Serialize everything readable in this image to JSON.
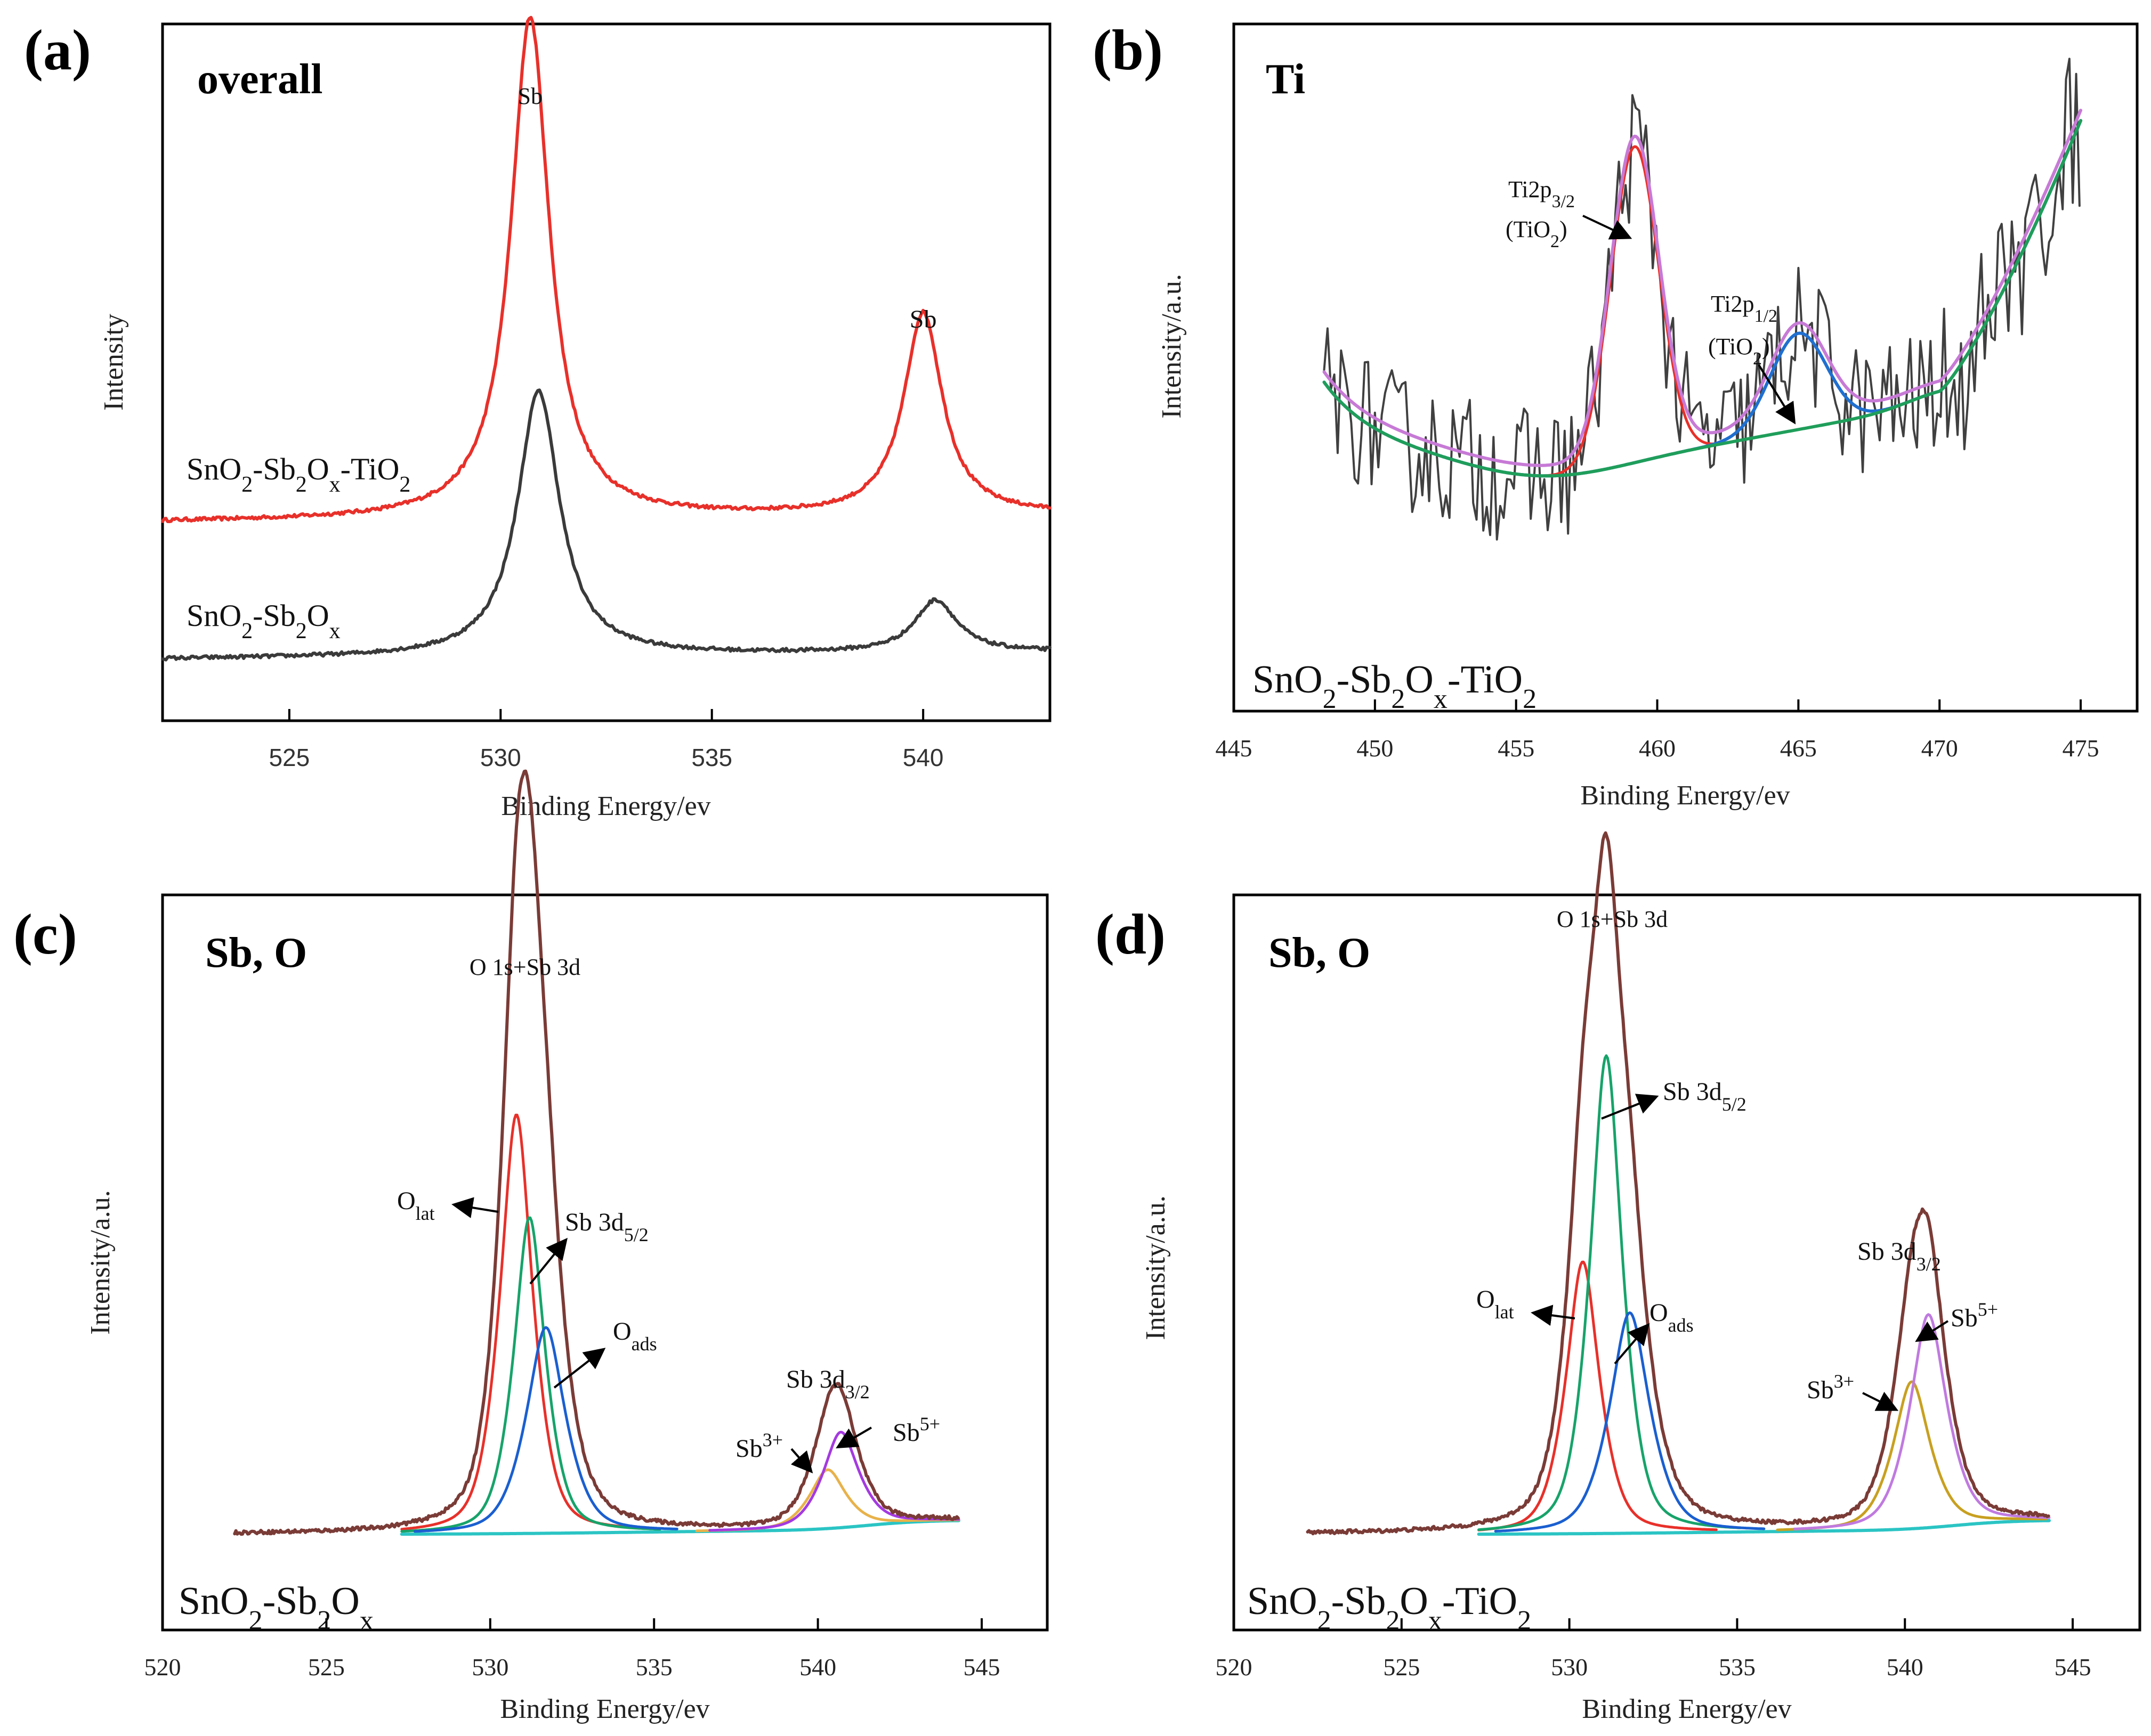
{
  "chart_data": [
    {
      "type": "line",
      "panel": "(a)",
      "title": "overall",
      "xlabel": "Binding Energy/ev",
      "ylabel": "Intensity",
      "xlim": [
        522,
        543
      ],
      "ylim": [
        0,
        100
      ],
      "xticks": [
        525,
        530,
        535,
        540
      ],
      "series": [
        {
          "name": "SnO2-Sb2Ox-TiO2",
          "label_html": "SnO<sub>2</sub>-Sb<sub>2</sub>O<sub>x</sub>-TiO<sub>2</sub>",
          "color": "#e8302a",
          "baseline": 28.5,
          "peaks": [
            {
              "center": 530.7,
              "height": 72,
              "width": 0.55
            },
            {
              "center": 540.0,
              "height": 29,
              "width": 0.55
            }
          ]
        },
        {
          "name": "SnO2-Sb2Ox",
          "label_html": "SnO<sub>2</sub>-Sb<sub>2</sub>O<sub>x</sub>",
          "color": "#3a3a3a",
          "baseline": 8.8,
          "peaks": [
            {
              "center": 530.9,
              "height": 38,
              "width": 0.6
            },
            {
              "center": 540.3,
              "height": 7.5,
              "width": 0.6
            }
          ]
        }
      ],
      "annotations": [
        {
          "text": "Sb",
          "x": 530.7
        },
        {
          "text": "Sb",
          "x": 540.0
        }
      ]
    },
    {
      "type": "line",
      "panel": "(b)",
      "title": "Ti",
      "sample_label": "SnO2-Sb2Ox-TiO2",
      "xlabel": "Binding Energy/ev",
      "ylabel": "Intensity/a.u.",
      "xlim": [
        445,
        477
      ],
      "ylim": [
        0,
        100
      ],
      "xticks": [
        445,
        450,
        455,
        460,
        465,
        470,
        475
      ],
      "series": [
        {
          "name": "raw",
          "color": "#404040"
        },
        {
          "name": "envelope",
          "color": "#c77ad6"
        },
        {
          "name": "Ti2p3/2 fit",
          "color": "#e8302a"
        },
        {
          "name": "Ti2p1/2 fit",
          "color": "#1f6fd0"
        },
        {
          "name": "background",
          "color": "#1f9e5a"
        }
      ],
      "peaks": [
        {
          "label": "Ti2p3/2 (TiO2)",
          "center": 459.2
        },
        {
          "label": "Ti2p1/2 (TiO2)",
          "center": 465.0
        }
      ],
      "annotations": [
        {
          "main": "Ti2p",
          "sub": "3/2",
          "line2": "(TiO",
          "line2_sub": "2",
          "line2_end": ")"
        },
        {
          "main": "Ti2p",
          "sub": "1/2",
          "line2": "(TiO",
          "line2_sub": "2",
          "line2_end": ")"
        }
      ]
    },
    {
      "type": "line",
      "panel": "(c)",
      "title": "Sb, O",
      "sample_label": "SnO2-Sb2Ox",
      "xlabel": "Binding Energy/ev",
      "ylabel": "Intensity/a.u.",
      "xlim": [
        520,
        547
      ],
      "ylim": [
        0,
        100
      ],
      "xticks": [
        520,
        525,
        530,
        535,
        540,
        545
      ],
      "series": [
        {
          "name": "envelope",
          "color": "#7a3b36"
        },
        {
          "name": "O_lat",
          "color": "#e8302a",
          "center": 530.8,
          "height": 57
        },
        {
          "name": "Sb 3d5/2",
          "color": "#17a36a",
          "center": 531.2,
          "height": 43
        },
        {
          "name": "O_ads",
          "color": "#1a5fd0",
          "center": 531.7,
          "height": 28
        },
        {
          "name": "Sb3+",
          "color": "#e8b24a",
          "center": 540.3,
          "height": 8
        },
        {
          "name": "Sb5+",
          "color": "#a43ae0",
          "center": 540.7,
          "height": 13
        },
        {
          "name": "background",
          "color": "#2bc4c4"
        }
      ],
      "annotations": [
        {
          "text": "O 1s+Sb 3d"
        },
        {
          "main": "O",
          "sub": "lat"
        },
        {
          "main": "Sb 3d",
          "sub": "5/2"
        },
        {
          "main": "O",
          "sub": "ads"
        },
        {
          "main": "Sb 3d",
          "sub": "3/2"
        },
        {
          "main": "Sb",
          "sup": "3+"
        },
        {
          "main": "Sb",
          "sup": "5+"
        }
      ]
    },
    {
      "type": "line",
      "panel": "(d)",
      "title": "Sb, O",
      "sample_label": "SnO2-Sb2Ox-TiO2",
      "xlabel": "Binding Energy/ev",
      "ylabel": "Intensity/a.u.",
      "xlim": [
        520,
        547
      ],
      "ylim": [
        0,
        100
      ],
      "xticks": [
        520,
        525,
        530,
        535,
        540,
        545
      ],
      "series": [
        {
          "name": "envelope",
          "color": "#7a3b36"
        },
        {
          "name": "O_lat",
          "color": "#e8302a",
          "center": 530.4,
          "height": 37
        },
        {
          "name": "Sb 3d5/2",
          "color": "#17a36a",
          "center": 531.1,
          "height": 65
        },
        {
          "name": "O_ads",
          "color": "#1a5fd0",
          "center": 531.8,
          "height": 30
        },
        {
          "name": "Sb3+",
          "color": "#c8a020",
          "center": 540.2,
          "height": 20
        },
        {
          "name": "Sb5+",
          "color": "#c07ae0",
          "center": 540.7,
          "height": 29
        },
        {
          "name": "background",
          "color": "#2bc4c4"
        }
      ],
      "annotations": [
        {
          "text": "O 1s+Sb 3d"
        },
        {
          "main": "Sb 3d",
          "sub": "5/2"
        },
        {
          "main": "O",
          "sub": "lat"
        },
        {
          "main": "O",
          "sub": "ads"
        },
        {
          "main": "Sb 3d",
          "sub": "3/2"
        },
        {
          "main": "Sb",
          "sup": "5+"
        },
        {
          "main": "Sb",
          "sup": "3+"
        }
      ]
    }
  ]
}
